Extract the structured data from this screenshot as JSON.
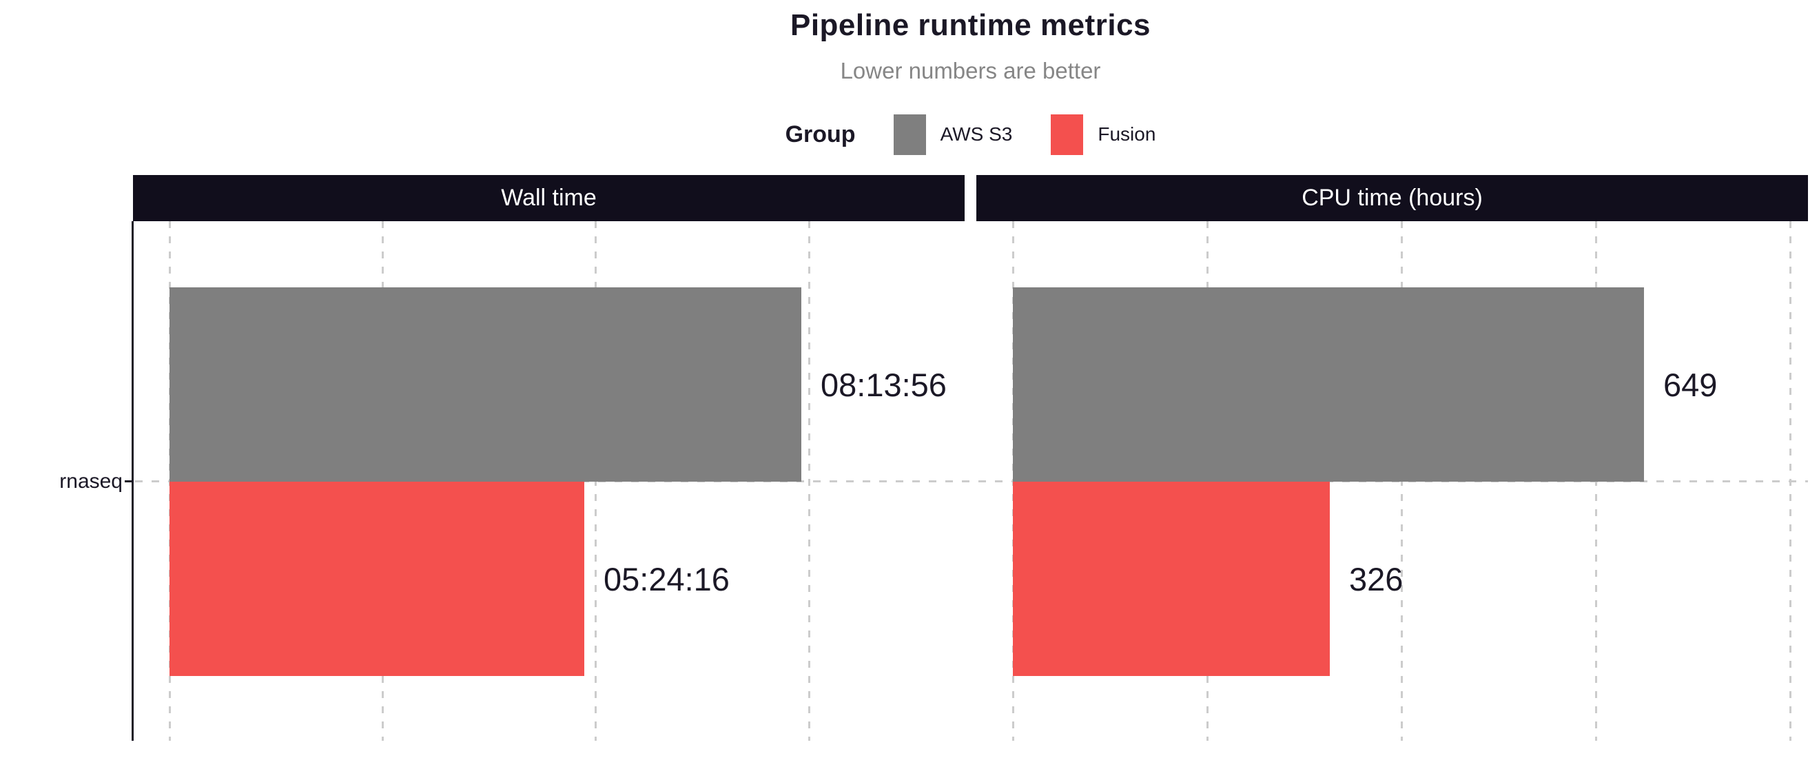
{
  "title": "Pipeline runtime metrics",
  "subtitle": "Lower numbers are better",
  "legend": {
    "title": "Group",
    "items": [
      {
        "label": "AWS S3",
        "color": "#7F7F7F"
      },
      {
        "label": "Fusion",
        "color": "#F4504E"
      }
    ]
  },
  "colors": {
    "text_dark": "#1B1826",
    "subtitle": "#868686",
    "strip_bg": "#110E1C",
    "grid": "#CCCCCC",
    "axis": "#1B1826"
  },
  "chart_data": {
    "type": "bar",
    "orientation": "horizontal",
    "categories": [
      "rnaseq"
    ],
    "legend_position": "top",
    "grid": "dashed major gridlines, no axis tick labels, no bottom axis line",
    "facets": [
      {
        "title": "Wall time",
        "unit": "seconds",
        "axis_min": 0,
        "axis_max": 37300,
        "gridline_values": [
          0,
          10000,
          20000,
          30000
        ],
        "series": [
          {
            "name": "AWS S3",
            "value": 29636,
            "label": "08:13:56"
          },
          {
            "name": "Fusion",
            "value": 19456,
            "label": "05:24:16"
          }
        ]
      },
      {
        "title": "CPU time (hours)",
        "unit": "hours",
        "axis_min": 0,
        "axis_max": 818,
        "gridline_values": [
          0,
          200,
          400,
          600,
          800
        ],
        "series": [
          {
            "name": "AWS S3",
            "value": 649,
            "label": "649"
          },
          {
            "name": "Fusion",
            "value": 326,
            "label": "326"
          }
        ]
      }
    ]
  }
}
